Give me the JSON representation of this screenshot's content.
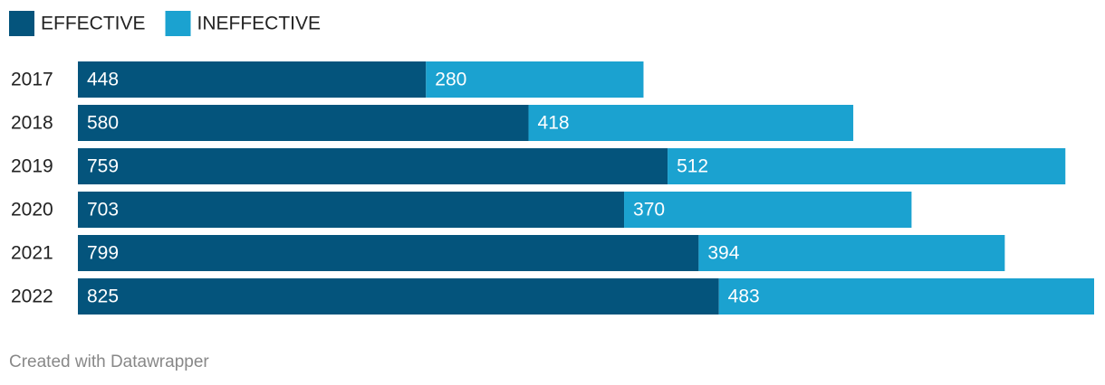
{
  "chart_data": {
    "type": "stacked-bar-horizontal",
    "categories": [
      "2017",
      "2018",
      "2019",
      "2020",
      "2021",
      "2022"
    ],
    "series": [
      {
        "name": "EFFECTIVE",
        "color": "#04547c",
        "values": [
          448,
          580,
          759,
          703,
          799,
          825
        ]
      },
      {
        "name": "INEFFECTIVE",
        "color": "#1ba2d0",
        "values": [
          280,
          418,
          512,
          370,
          394,
          483
        ]
      }
    ],
    "credit": "Created with Datawrapper"
  }
}
